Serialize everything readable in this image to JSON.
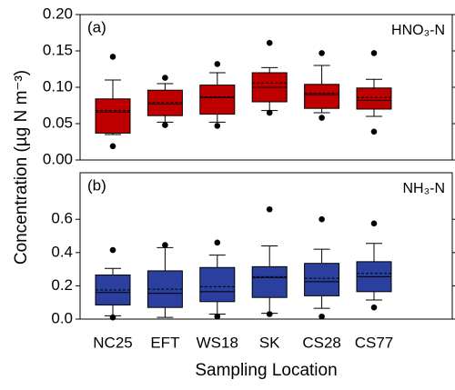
{
  "chart_data": [
    {
      "type": "box",
      "panel_label": "(a)",
      "annotation": "HNO₃-N",
      "y_label": "Concentration (µg N m⁻³)",
      "color": "#c00000",
      "ylim": [
        0,
        0.2
      ],
      "yticks": [
        {
          "value": 0,
          "label": "0.00"
        },
        0.05,
        {
          "value": 0.1,
          "label": "0.10"
        },
        0.15,
        {
          "value": 0.2,
          "label": "0.20"
        }
      ],
      "boxes": [
        {
          "whislo": 0.035,
          "q1": 0.037,
          "med": 0.066,
          "mean": 0.068,
          "q3": 0.084,
          "whishi": 0.11,
          "fliers": [
            0.142,
            0.019
          ]
        },
        {
          "whislo": 0.052,
          "q1": 0.061,
          "med": 0.077,
          "mean": 0.079,
          "q3": 0.096,
          "whishi": 0.105,
          "fliers": [
            0.113,
            0.048
          ]
        },
        {
          "whislo": 0.052,
          "q1": 0.063,
          "med": 0.086,
          "mean": 0.087,
          "q3": 0.103,
          "whishi": 0.12,
          "fliers": [
            0.132,
            0.047
          ]
        },
        {
          "whislo": 0.068,
          "q1": 0.08,
          "med": 0.1,
          "mean": 0.106,
          "q3": 0.12,
          "whishi": 0.127,
          "fliers": [
            0.161,
            0.065
          ]
        },
        {
          "whislo": 0.065,
          "q1": 0.071,
          "med": 0.09,
          "mean": 0.092,
          "q3": 0.104,
          "whishi": 0.13,
          "fliers": [
            0.147,
            0.058
          ]
        },
        {
          "whislo": 0.06,
          "q1": 0.07,
          "med": 0.082,
          "mean": 0.086,
          "q3": 0.099,
          "whishi": 0.111,
          "fliers": [
            0.147,
            0.039
          ]
        }
      ]
    },
    {
      "type": "box",
      "panel_label": "(b)",
      "annotation": "NH₃-N",
      "x_label": "Sampling Location",
      "color": "#2b3f9e",
      "categories": [
        "NC25",
        "EFT",
        "WS18",
        "SK",
        "CS28",
        "CS77"
      ],
      "ylim": [
        0,
        0.88
      ],
      "yticks": [
        {
          "value": 0,
          "label": "0.0"
        },
        0.2,
        0.4,
        0.6
      ],
      "boxes": [
        {
          "whislo": 0.02,
          "q1": 0.085,
          "med": 0.16,
          "mean": 0.175,
          "q3": 0.265,
          "whishi": 0.305,
          "fliers": [
            0.415,
            0.01
          ]
        },
        {
          "whislo": 0.01,
          "q1": 0.07,
          "med": 0.155,
          "mean": 0.18,
          "q3": 0.29,
          "whishi": 0.43,
          "fliers": [
            0.445
          ]
        },
        {
          "whislo": 0.03,
          "q1": 0.105,
          "med": 0.165,
          "mean": 0.195,
          "q3": 0.31,
          "whishi": 0.385,
          "fliers": [
            0.46,
            0.015
          ]
        },
        {
          "whislo": 0.035,
          "q1": 0.13,
          "med": 0.25,
          "mean": 0.255,
          "q3": 0.315,
          "whishi": 0.44,
          "fliers": [
            0.66,
            0.03
          ]
        },
        {
          "whislo": 0.065,
          "q1": 0.14,
          "med": 0.225,
          "mean": 0.245,
          "q3": 0.335,
          "whishi": 0.42,
          "fliers": [
            0.6,
            0.015
          ]
        },
        {
          "whislo": 0.115,
          "q1": 0.165,
          "med": 0.255,
          "mean": 0.275,
          "q3": 0.345,
          "whishi": 0.455,
          "fliers": [
            0.575,
            0.07
          ]
        }
      ]
    }
  ]
}
